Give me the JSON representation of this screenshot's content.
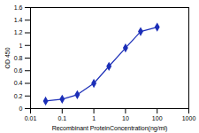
{
  "chart_data": {
    "type": "line",
    "x_label": "Recombinant ProteinConcentration(ng/ml)",
    "y_label": "OD 450",
    "x": [
      0.03,
      0.1,
      0.3,
      1,
      3,
      10,
      30,
      100
    ],
    "values": [
      0.12,
      0.15,
      0.22,
      0.4,
      0.67,
      0.96,
      1.22,
      1.29
    ],
    "color": "#1c2fb8",
    "marker": "diamond",
    "log": "x",
    "grid": false,
    "xlim": [
      0.01,
      1000
    ],
    "xticks": [
      0.01,
      0.1,
      1,
      10,
      100,
      1000
    ],
    "ylim": [
      0,
      1.6
    ],
    "yticks": [
      0,
      0.2,
      0.4,
      0.6,
      0.8,
      1,
      1.2,
      1.4,
      1.6
    ]
  }
}
